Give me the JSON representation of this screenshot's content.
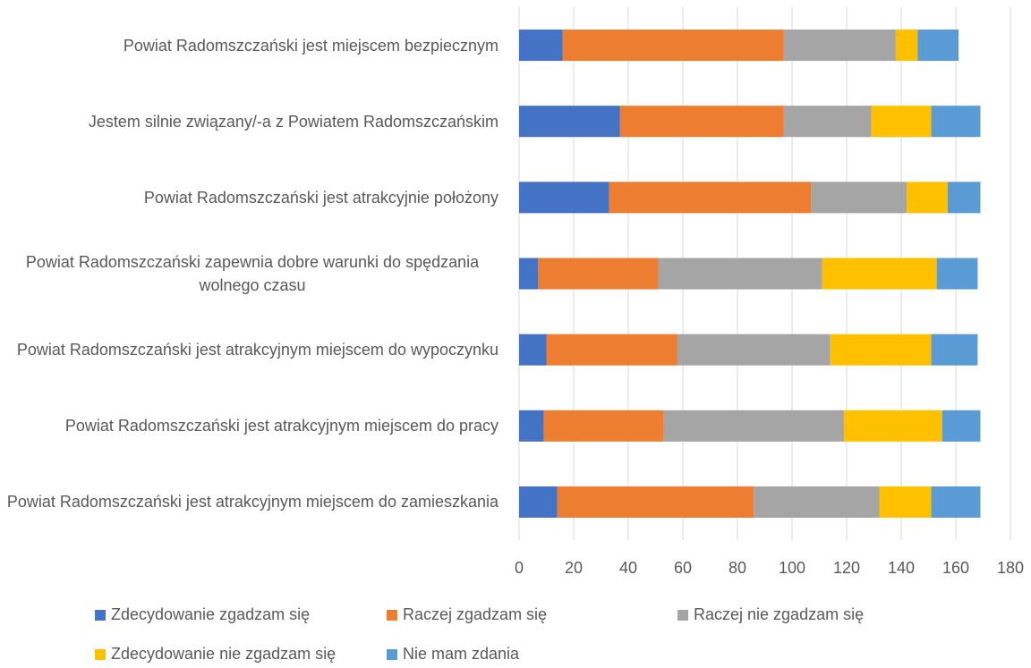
{
  "chart_data": {
    "type": "stacked-bar-horizontal",
    "categories": [
      "Powiat Radomszczański jest miejscem bezpiecznym",
      "Jestem silnie związany/-a z Powiatem Radomszczańskim",
      "Powiat Radomszczański jest atrakcyjnie położony",
      "Powiat Radomszczański zapewnia dobre warunki do spędzania wolnego czasu",
      "Powiat Radomszczański jest atrakcyjnym miejscem do wypoczynku",
      "Powiat Radomszczański jest atrakcyjnym miejscem do pracy",
      "Powiat Radomszczański jest atrakcyjnym miejscem do zamieszkania"
    ],
    "series": [
      {
        "name": "Zdecydowanie zgadzam się",
        "color": "#4472c4",
        "values": [
          16,
          37,
          33,
          7,
          10,
          9,
          14
        ]
      },
      {
        "name": "Raczej zgadzam się",
        "color": "#ed7d31",
        "values": [
          81,
          60,
          74,
          44,
          48,
          44,
          72
        ]
      },
      {
        "name": "Raczej nie zgadzam się",
        "color": "#a5a5a5",
        "values": [
          41,
          32,
          35,
          60,
          56,
          66,
          46
        ]
      },
      {
        "name": "Zdecydowanie nie zgadzam się",
        "color": "#ffc000",
        "values": [
          8,
          22,
          15,
          42,
          37,
          36,
          19
        ]
      },
      {
        "name": "Nie mam zdania",
        "color": "#5b9bd5",
        "values": [
          15,
          18,
          12,
          15,
          17,
          14,
          18
        ]
      }
    ],
    "xlim": [
      0,
      180
    ],
    "xticks": [
      0,
      20,
      40,
      60,
      80,
      100,
      120,
      140,
      160,
      180
    ],
    "grid": true,
    "legend": "bottom"
  }
}
